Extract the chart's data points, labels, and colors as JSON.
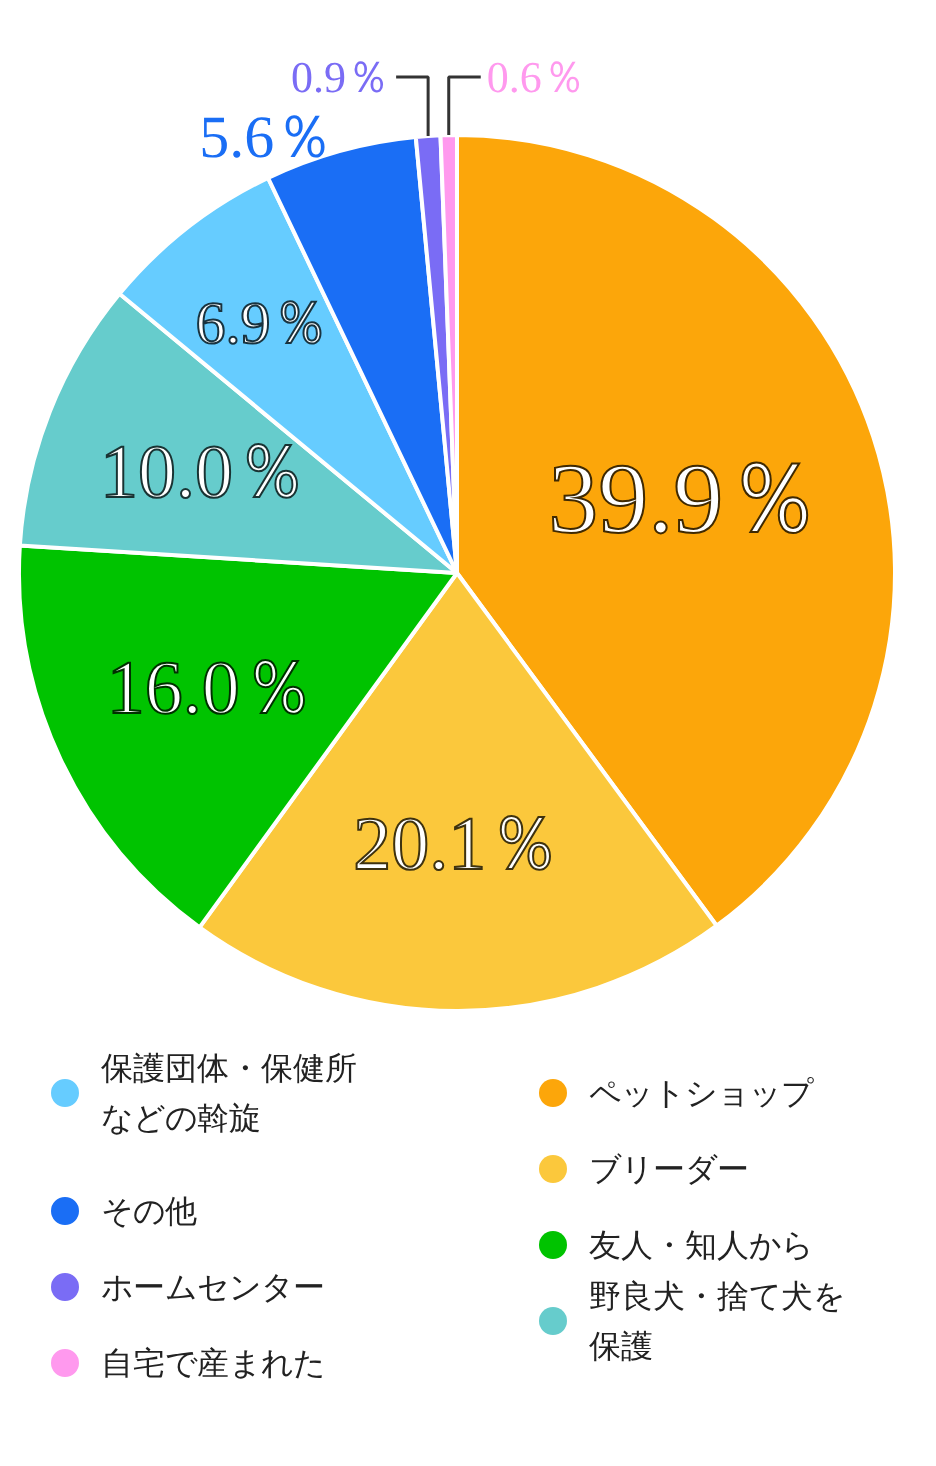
{
  "chart_data": {
    "type": "pie",
    "categories": [
      "ペットショップ",
      "ブリーダー",
      "友人・知人から",
      "野良犬・捨て犬を保護",
      "保護団体・保健所などの斡旋",
      "その他",
      "ホームセンター",
      "自宅で産まれた"
    ],
    "values": [
      39.9,
      20.1,
      16.0,
      10.0,
      6.9,
      5.6,
      0.9,
      0.6
    ],
    "value_labels": [
      "39.9％",
      "20.1％",
      "16.0％",
      "10.0％",
      "6.9％",
      "5.6％",
      "0.9％",
      "0.6％"
    ],
    "colors": [
      "#fca60a",
      "#fbc83c",
      "#00c300",
      "#66cccc",
      "#66ccff",
      "#1a6ef5",
      "#7a6cf5",
      "#ff99ee"
    ],
    "legend": "bottom"
  }
}
